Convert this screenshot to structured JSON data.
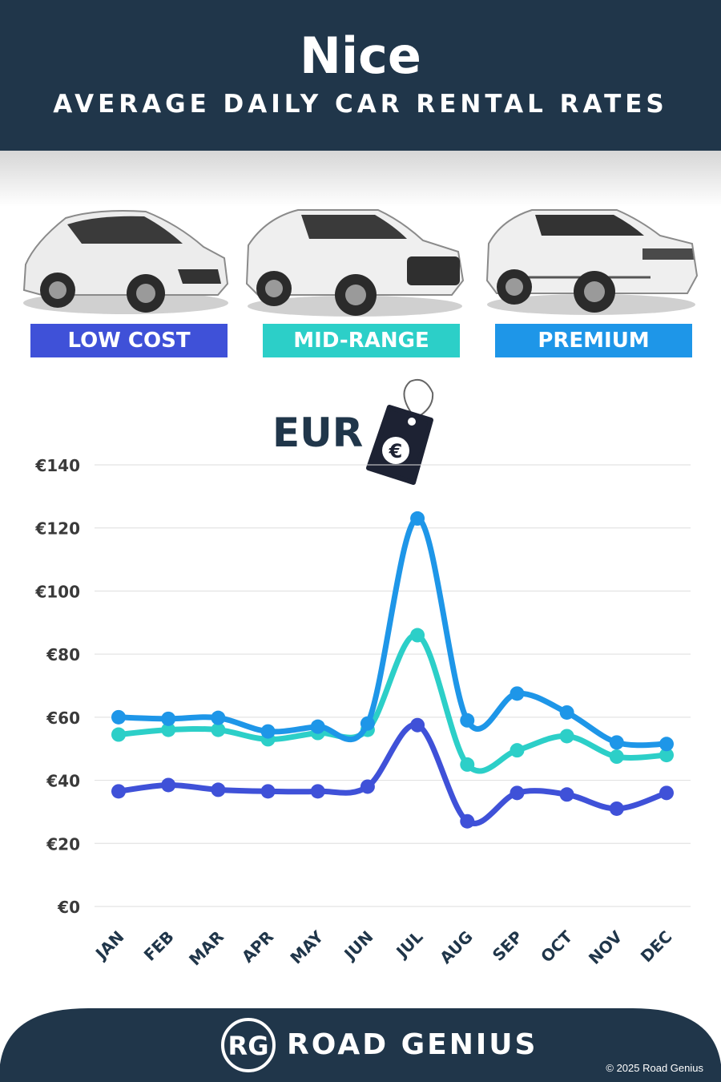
{
  "header": {
    "title": "Nice",
    "subtitle": "AVERAGE DAILY CAR RENTAL RATES"
  },
  "badges": [
    {
      "label": "LOW COST",
      "color": "#3f51d8"
    },
    {
      "label": "MID-RANGE",
      "color": "#2ccfc8"
    },
    {
      "label": "PREMIUM",
      "color": "#1e96e8"
    }
  ],
  "currency": {
    "label": "EUR",
    "symbol": "€"
  },
  "chart_data": {
    "type": "line",
    "categories": [
      "JAN",
      "FEB",
      "MAR",
      "APR",
      "MAY",
      "JUN",
      "JUL",
      "AUG",
      "SEP",
      "OCT",
      "NOV",
      "DEC"
    ],
    "series": [
      {
        "name": "LOW COST",
        "color": "#3f51d8",
        "values": [
          36.5,
          38.5,
          37,
          36.5,
          36.5,
          38,
          57.5,
          27,
          36,
          35.5,
          31,
          36
        ]
      },
      {
        "name": "MID-RANGE",
        "color": "#2ccfc8",
        "values": [
          54.5,
          56,
          56,
          53,
          55,
          56,
          86,
          45,
          49.5,
          54,
          47.5,
          48
        ]
      },
      {
        "name": "PREMIUM",
        "color": "#1e96e8",
        "values": [
          60,
          59.5,
          59.8,
          55.5,
          57,
          58,
          123,
          59,
          67.5,
          61.5,
          52,
          51.5
        ]
      }
    ],
    "ylim": [
      0,
      140
    ],
    "yticks": [
      0,
      20,
      40,
      60,
      80,
      100,
      120,
      140
    ],
    "ytick_labels": [
      "€0",
      "€20",
      "€40",
      "€60",
      "€80",
      "€100",
      "€120",
      "€140"
    ],
    "grid": true
  },
  "footer": {
    "brand": "ROAD GENIUS",
    "logo_initials": "RG",
    "copyright": "© 2025 Road Genius",
    "color": "#20364a"
  }
}
